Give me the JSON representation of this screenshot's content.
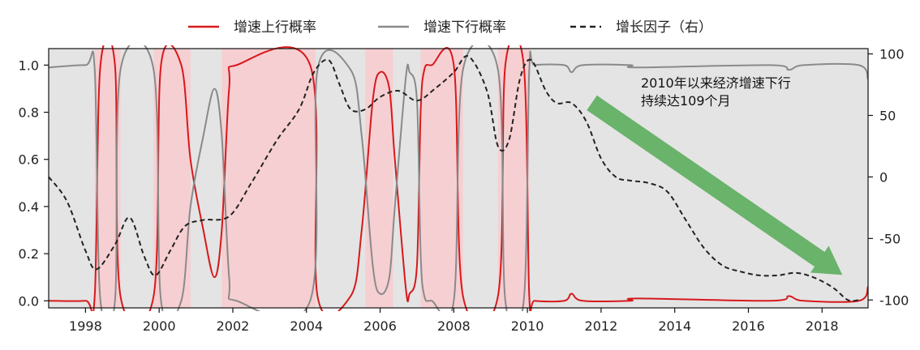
{
  "chart_data": {
    "type": "line",
    "title": "",
    "xlabel": "",
    "ylabel": "",
    "ylabel_right": "",
    "xlim": [
      1997.0,
      2019.25
    ],
    "ylim_left": [
      -0.03,
      1.07
    ],
    "ylim_right": [
      -106.4,
      104.3
    ],
    "x_ticks": [
      1998,
      2000,
      2002,
      2004,
      2006,
      2008,
      2010,
      2012,
      2014,
      2016,
      2018
    ],
    "x_tick_labels": [
      "1998",
      "2000",
      "2002",
      "2004",
      "2006",
      "2008",
      "2010",
      "2012",
      "2014",
      "2016",
      "2018"
    ],
    "y_left_ticks": [
      0.0,
      0.2,
      0.4,
      0.6,
      0.8,
      1.0
    ],
    "y_left_tick_labels": [
      "0.0",
      "0.2",
      "0.4",
      "0.6",
      "0.8",
      "1.0"
    ],
    "y_right_ticks": [
      100,
      50,
      0,
      -50,
      -100
    ],
    "y_right_tick_labels": [
      "100",
      "50",
      "0",
      "-50",
      "-100"
    ],
    "grid": false,
    "legend_position": "top",
    "background_color": "#e4e4e4",
    "shaded_color": "#f6cfd2",
    "shaded_periods": [
      [
        1998.25,
        1998.95
      ],
      [
        1999.85,
        2000.85
      ],
      [
        2001.7,
        2004.25
      ],
      [
        2005.6,
        2006.35
      ],
      [
        2007.1,
        2008.25
      ],
      [
        2009.2,
        2010.05
      ]
    ],
    "series": [
      {
        "name": "增速上行概率",
        "axis": "left",
        "color": "#d7191c",
        "dash": "solid",
        "x": [
          1997.0,
          1998.0,
          1998.25,
          1998.4,
          1998.8,
          1998.95,
          1999.85,
          2000.05,
          2000.6,
          2000.85,
          2001.2,
          2001.5,
          2001.7,
          2001.9,
          2002.1,
          2004.1,
          2004.3,
          2005.2,
          2005.5,
          2005.8,
          2006.0,
          2006.25,
          2006.4,
          2006.7,
          2006.8,
          2007.0,
          2007.1,
          2007.2,
          2007.4,
          2008.0,
          2008.25,
          2009.2,
          2009.4,
          2009.9,
          2010.05,
          2010.2,
          2011.0,
          2011.2,
          2011.5,
          2012.8,
          2013.0,
          2016.6,
          2017.1,
          2017.5,
          2019.0,
          2019.25
        ],
        "values": [
          0.0,
          0.0,
          0.02,
          0.99,
          1.0,
          0.02,
          0.02,
          1.0,
          1.0,
          0.6,
          0.3,
          0.1,
          0.3,
          0.9,
          1.0,
          1.0,
          0.02,
          0.02,
          0.3,
          0.85,
          0.97,
          0.9,
          0.6,
          0.05,
          0.03,
          0.15,
          0.8,
          0.98,
          1.0,
          1.0,
          0.02,
          0.02,
          1.0,
          1.0,
          0.02,
          0.0,
          0.0,
          0.03,
          0.0,
          0.0,
          0.01,
          0.0,
          0.02,
          0.0,
          0.0,
          0.06
        ]
      },
      {
        "name": "增速下行概率",
        "axis": "left",
        "color": "#8a8a8a",
        "dash": "solid",
        "x": [
          1997.0,
          1998.0,
          1998.25,
          1998.4,
          1998.8,
          1998.95,
          1999.85,
          2000.05,
          2000.6,
          2000.85,
          2001.2,
          2001.5,
          2001.7,
          2001.9,
          2002.1,
          2004.1,
          2004.3,
          2005.2,
          2005.5,
          2005.8,
          2006.0,
          2006.25,
          2006.4,
          2006.7,
          2006.8,
          2007.0,
          2007.1,
          2007.2,
          2007.4,
          2008.0,
          2008.25,
          2009.2,
          2009.4,
          2009.9,
          2010.05,
          2010.2,
          2011.0,
          2011.2,
          2011.5,
          2012.8,
          2013.0,
          2016.6,
          2017.1,
          2017.5,
          2019.0,
          2019.25
        ],
        "values": [
          0.99,
          1.0,
          0.98,
          0.01,
          0.0,
          0.98,
          0.98,
          0.0,
          0.0,
          0.4,
          0.7,
          0.9,
          0.7,
          0.1,
          0.0,
          0.0,
          0.98,
          0.98,
          0.7,
          0.15,
          0.03,
          0.1,
          0.4,
          0.95,
          0.97,
          0.85,
          0.2,
          0.02,
          0.0,
          0.0,
          0.98,
          0.98,
          0.0,
          0.0,
          0.98,
          1.0,
          1.0,
          0.97,
          1.0,
          1.0,
          0.99,
          1.0,
          0.98,
          1.0,
          1.0,
          0.94
        ]
      },
      {
        "name": "增长因子（右）",
        "axis": "right",
        "color": "#222222",
        "dash": "dashed",
        "x": [
          1997.0,
          1997.5,
          1998.0,
          1998.3,
          1998.8,
          1999.2,
          1999.6,
          1999.9,
          2000.3,
          2000.7,
          2001.2,
          2001.9,
          2002.5,
          2003.2,
          2003.8,
          2004.2,
          2004.6,
          2004.9,
          2005.2,
          2005.6,
          2006.0,
          2006.5,
          2007.0,
          2007.5,
          2008.0,
          2008.4,
          2008.9,
          2009.2,
          2009.5,
          2009.8,
          2010.1,
          2010.5,
          2010.8,
          2011.2,
          2011.6,
          2012.0,
          2012.4,
          2012.8,
          2013.3,
          2013.8,
          2014.3,
          2014.8,
          2015.3,
          2015.8,
          2016.3,
          2016.8,
          2017.3,
          2017.8,
          2018.3,
          2018.7,
          2019.0
        ],
        "values": [
          0,
          -20,
          -60,
          -75,
          -55,
          -33,
          -65,
          -80,
          -60,
          -40,
          -35,
          -32,
          -5,
          30,
          55,
          85,
          95,
          75,
          55,
          55,
          65,
          70,
          62,
          72,
          85,
          98,
          70,
          25,
          30,
          80,
          95,
          70,
          60,
          60,
          45,
          15,
          0,
          -3,
          -5,
          -12,
          -35,
          -58,
          -72,
          -77,
          -80,
          -80,
          -78,
          -82,
          -90,
          -100,
          -100
        ]
      }
    ],
    "annotation": {
      "lines": [
        "2010年以来经济增速下行",
        "持续达109个月"
      ],
      "arrow_color": "#69b36b",
      "arrow_from": [
        2011.75,
        0.84
      ],
      "arrow_to": [
        2018.55,
        0.11
      ]
    }
  }
}
